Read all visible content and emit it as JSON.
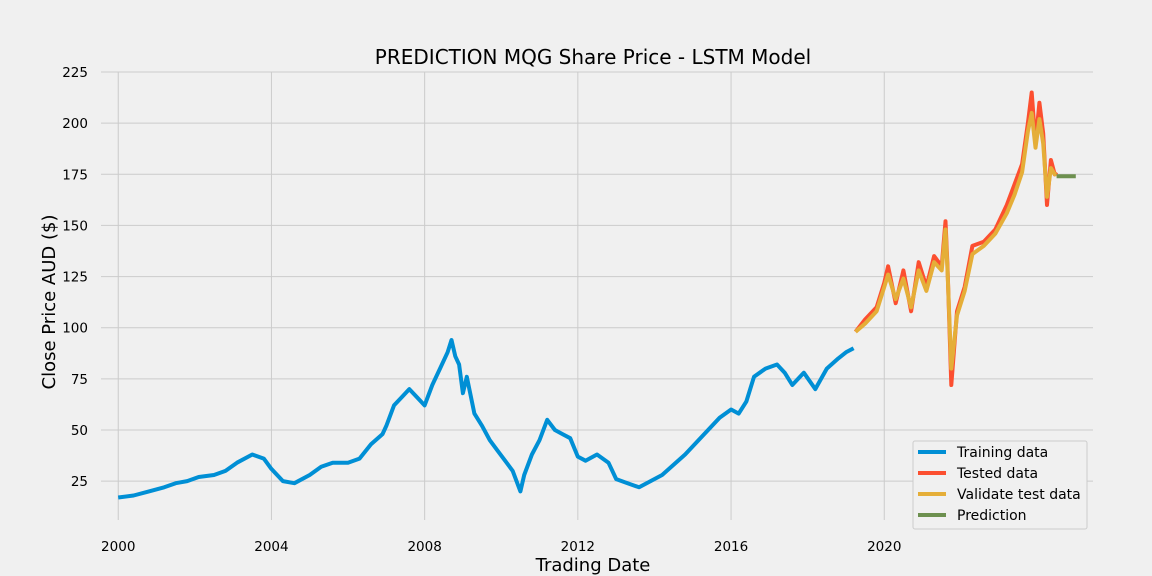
{
  "chart_data": {
    "type": "line",
    "title": "PREDICTION MQG Share Price - LSTM Model",
    "xlabel": "Trading Date",
    "ylabel": "Close Price AUD ($)",
    "xlim": [
      1999.55,
      2025.45
    ],
    "ylim": [
      6.0,
      225.0
    ],
    "x_ticks": [
      2000,
      2004,
      2008,
      2012,
      2016,
      2020
    ],
    "y_ticks": [
      25,
      50,
      75,
      100,
      125,
      150,
      175,
      200,
      225
    ],
    "grid": true,
    "legend_position": "lower-right",
    "colors": {
      "training": "#008fd5",
      "tested": "#fc4f30",
      "validate": "#e5ae38",
      "prediction": "#6d904f"
    },
    "series": [
      {
        "name": "Training data",
        "key": "training",
        "x": [
          2000.0,
          2000.4,
          2000.8,
          2001.2,
          2001.5,
          2001.8,
          2002.1,
          2002.5,
          2002.8,
          2003.1,
          2003.5,
          2003.8,
          2004.0,
          2004.3,
          2004.6,
          2005.0,
          2005.3,
          2005.6,
          2006.0,
          2006.3,
          2006.6,
          2006.9,
          2007.0,
          2007.2,
          2007.4,
          2007.6,
          2007.8,
          2008.0,
          2008.2,
          2008.4,
          2008.6,
          2008.7,
          2008.8,
          2008.9,
          2009.0,
          2009.1,
          2009.3,
          2009.5,
          2009.7,
          2009.9,
          2010.1,
          2010.3,
          2010.5,
          2010.6,
          2010.8,
          2011.0,
          2011.2,
          2011.4,
          2011.6,
          2011.8,
          2012.0,
          2012.2,
          2012.5,
          2012.8,
          2013.0,
          2013.3,
          2013.6,
          2013.9,
          2014.2,
          2014.5,
          2014.8,
          2015.1,
          2015.4,
          2015.7,
          2016.0,
          2016.2,
          2016.4,
          2016.6,
          2016.9,
          2017.2,
          2017.4,
          2017.6,
          2017.9,
          2018.2,
          2018.5,
          2018.8,
          2019.0,
          2019.2
        ],
        "y": [
          17,
          18,
          20,
          22,
          24,
          25,
          27,
          28,
          30,
          34,
          38,
          36,
          31,
          25,
          24,
          28,
          32,
          34,
          34,
          36,
          43,
          48,
          52,
          62,
          66,
          70,
          66,
          62,
          72,
          80,
          88,
          94,
          86,
          82,
          68,
          76,
          58,
          52,
          45,
          40,
          35,
          30,
          20,
          28,
          38,
          45,
          55,
          50,
          48,
          46,
          37,
          35,
          38,
          34,
          26,
          24,
          22,
          25,
          28,
          33,
          38,
          44,
          50,
          56,
          60,
          58,
          64,
          76,
          80,
          82,
          78,
          72,
          78,
          70,
          80,
          85,
          88,
          90
        ]
      },
      {
        "name": "Tested data",
        "key": "tested",
        "x": [
          2019.25,
          2019.5,
          2019.8,
          2020.0,
          2020.1,
          2020.3,
          2020.5,
          2020.7,
          2020.9,
          2021.1,
          2021.3,
          2021.5,
          2021.6,
          2021.65,
          2021.75,
          2021.9,
          2022.1,
          2022.3,
          2022.6,
          2022.9,
          2023.2,
          2023.4,
          2023.6,
          2023.75,
          2023.85,
          2023.95,
          2024.05,
          2024.15,
          2024.25,
          2024.35,
          2024.45,
          2024.5
        ],
        "y": [
          98,
          104,
          110,
          122,
          130,
          112,
          128,
          108,
          132,
          120,
          135,
          130,
          152,
          130,
          72,
          108,
          120,
          140,
          142,
          148,
          160,
          170,
          180,
          200,
          215,
          190,
          210,
          195,
          160,
          182,
          175,
          176
        ]
      },
      {
        "name": "Validate test data",
        "key": "validate",
        "x": [
          2019.25,
          2019.5,
          2019.8,
          2020.0,
          2020.1,
          2020.3,
          2020.5,
          2020.7,
          2020.9,
          2021.1,
          2021.3,
          2021.5,
          2021.6,
          2021.65,
          2021.75,
          2021.9,
          2022.1,
          2022.3,
          2022.6,
          2022.9,
          2023.2,
          2023.4,
          2023.6,
          2023.75,
          2023.85,
          2023.95,
          2024.05,
          2024.15,
          2024.25,
          2024.35,
          2024.45,
          2024.5
        ],
        "y": [
          98,
          102,
          108,
          120,
          126,
          114,
          124,
          110,
          128,
          118,
          132,
          128,
          148,
          128,
          80,
          106,
          118,
          136,
          140,
          146,
          156,
          165,
          176,
          196,
          205,
          188,
          202,
          190,
          164,
          178,
          175,
          175
        ]
      },
      {
        "name": "Prediction",
        "key": "prediction",
        "x": [
          2024.5,
          2025.0
        ],
        "y": [
          174,
          174
        ]
      }
    ]
  }
}
